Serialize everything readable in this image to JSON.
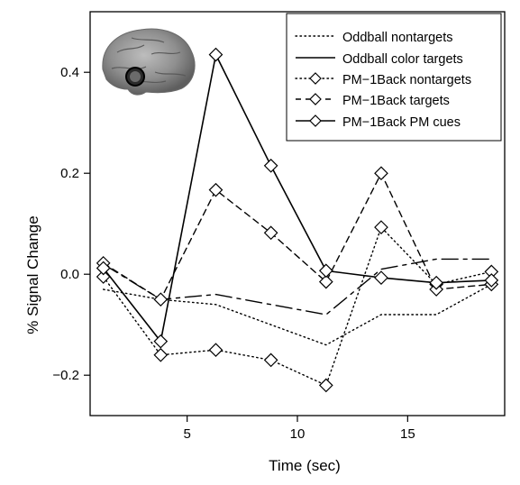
{
  "chart_data": {
    "type": "line",
    "xlabel": "Time (sec)",
    "ylabel": "% Signal Change",
    "xlim": [
      0.6,
      19.4
    ],
    "ylim": [
      -0.28,
      0.52
    ],
    "xticks": [
      5,
      10,
      15
    ],
    "xtick_labels": [
      "5",
      "10",
      "15"
    ],
    "yticks": [
      -0.2,
      0.0,
      0.2,
      0.4
    ],
    "ytick_labels": [
      "−0.2",
      "0.0",
      "0.2",
      "0.4"
    ],
    "legend_position": "top-right",
    "inset": "brain-region-icon",
    "series": [
      {
        "name": "Oddball nontargets",
        "style": "dotted",
        "marker": "none",
        "x": [
          1.2,
          3.8,
          6.3,
          8.8,
          11.3,
          13.8,
          16.3,
          18.8
        ],
        "y": [
          -0.03,
          -0.05,
          -0.06,
          -0.1,
          -0.14,
          -0.08,
          -0.08,
          -0.02
        ]
      },
      {
        "name": "Oddball color targets",
        "style": "dashdot",
        "marker": "none",
        "x": [
          1.2,
          3.8,
          6.3,
          8.8,
          11.3,
          13.8,
          16.3,
          18.8
        ],
        "y": [
          0.02,
          -0.05,
          -0.04,
          -0.06,
          -0.08,
          0.01,
          0.03,
          0.03
        ]
      },
      {
        "name": "PM−1Back nontargets",
        "style": "dotted",
        "marker": "diamond",
        "x": [
          1.2,
          3.8,
          6.3,
          8.8,
          11.3,
          13.8,
          16.3,
          18.8
        ],
        "y": [
          -0.005,
          -0.16,
          -0.15,
          -0.17,
          -0.22,
          0.093,
          -0.02,
          0.005
        ]
      },
      {
        "name": "PM−1Back targets",
        "style": "dashed",
        "marker": "diamond",
        "x": [
          1.2,
          3.8,
          6.3,
          8.8,
          11.3,
          13.8,
          16.3,
          18.8
        ],
        "y": [
          0.022,
          -0.05,
          0.167,
          0.082,
          -0.015,
          0.2,
          -0.03,
          -0.02
        ]
      },
      {
        "name": "PM−1Back PM cues",
        "style": "solid",
        "marker": "diamond",
        "x": [
          1.2,
          3.8,
          6.3,
          8.8,
          11.3,
          13.8,
          16.3,
          18.8
        ],
        "y": [
          0.012,
          -0.133,
          0.435,
          0.215,
          0.007,
          -0.007,
          -0.017,
          -0.012
        ]
      }
    ]
  }
}
